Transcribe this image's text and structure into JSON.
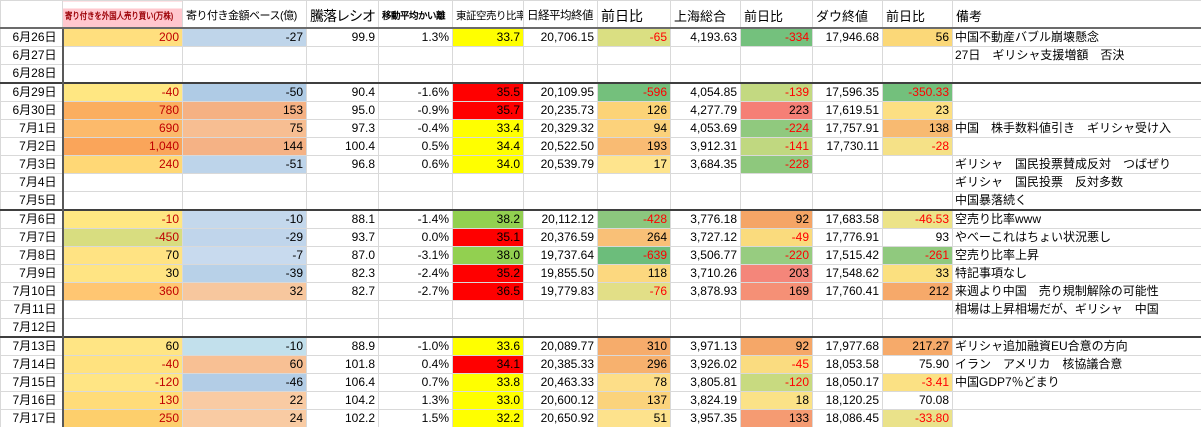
{
  "app": {
    "type": "spreadsheet",
    "description": "株式市況記録シート"
  },
  "columns": [
    {
      "key": "date",
      "label": ""
    },
    {
      "key": "foreign",
      "label": "寄り付きを外国人売り買い(万株)"
    },
    {
      "key": "amount",
      "label": "寄り付き金額ベース(億)"
    },
    {
      "key": "ratio",
      "label": "騰落レシオ"
    },
    {
      "key": "deviation",
      "label": "移動平均かい離"
    },
    {
      "key": "short_ratio",
      "label": "東証空売り比率"
    },
    {
      "key": "nikkei",
      "label": "日経平均終値"
    },
    {
      "key": "nikkei_chg",
      "label": "前日比"
    },
    {
      "key": "shanghai",
      "label": "上海総合"
    },
    {
      "key": "shanghai_chg",
      "label": "前日比"
    },
    {
      "key": "dow",
      "label": "ダウ終値"
    },
    {
      "key": "dow_chg",
      "label": "前日比"
    },
    {
      "key": "note",
      "label": "備考"
    }
  ],
  "colors": {
    "header_pink_bg": "#ffc7ce",
    "header_pink_text": "#9c0006",
    "short_yellow": "#ffff00",
    "short_red": "#ff0000",
    "short_green": "#92d050",
    "negative_text": "#ff0000",
    "foreign_text_red": "#c00000",
    "grid": "#d9d9d9",
    "week_border": "#3f3f3f"
  },
  "rows": [
    {
      "date": "6月26日",
      "week_start": false,
      "cells": {
        "foreign": {
          "v": "200",
          "bg": "#FFDF7E",
          "fg": "#C00000"
        },
        "amount": {
          "v": "-27",
          "bg": "#BFD5EA"
        },
        "ratio": {
          "v": "99.9"
        },
        "deviation": {
          "v": "1.3%"
        },
        "short_ratio": {
          "v": "33.7",
          "bg": "#FFFF00"
        },
        "nikkei": {
          "v": "20,706.15"
        },
        "nikkei_chg": {
          "v": "-65",
          "bg": "#DADF82",
          "fg": "#FF0000"
        },
        "shanghai": {
          "v": "4,193.63"
        },
        "shanghai_chg": {
          "v": "-334",
          "bg": "#74C17D",
          "fg": "#FF0000"
        },
        "dow": {
          "v": "17,946.68"
        },
        "dow_chg": {
          "v": "56",
          "bg": "#FBD878"
        },
        "note": {
          "v": "中国不動産バブル崩壊懸念"
        }
      }
    },
    {
      "date": "6月27日",
      "week_start": false,
      "cells": {
        "note": {
          "v": "27日　ギリシャ支援増額　否決"
        }
      }
    },
    {
      "date": "6月28日",
      "week_start": false,
      "cells": {}
    },
    {
      "date": "6月29日",
      "week_start": true,
      "cells": {
        "foreign": {
          "v": "-40",
          "bg": "#FFE782",
          "fg": "#C00000"
        },
        "amount": {
          "v": "-50",
          "bg": "#AFCBE5"
        },
        "ratio": {
          "v": "90.4"
        },
        "deviation": {
          "v": "-1.6%"
        },
        "short_ratio": {
          "v": "35.5",
          "bg": "#FF0000"
        },
        "nikkei": {
          "v": "20,109.95"
        },
        "nikkei_chg": {
          "v": "-596",
          "bg": "#74C07C",
          "fg": "#FF0000"
        },
        "shanghai": {
          "v": "4,054.85"
        },
        "shanghai_chg": {
          "v": "-139",
          "bg": "#C3D981",
          "fg": "#FF0000"
        },
        "dow": {
          "v": "17,596.35"
        },
        "dow_chg": {
          "v": "-350.33",
          "bg": "#73C07C",
          "fg": "#FF0000"
        }
      }
    },
    {
      "date": "6月30日",
      "week_start": false,
      "cells": {
        "foreign": {
          "v": "780",
          "bg": "#FBAE5F",
          "fg": "#C00000"
        },
        "amount": {
          "v": "153",
          "bg": "#F5B183"
        },
        "ratio": {
          "v": "95.0"
        },
        "deviation": {
          "v": "-0.9%"
        },
        "short_ratio": {
          "v": "35.7",
          "bg": "#FF0000"
        },
        "nikkei": {
          "v": "20,235.73"
        },
        "nikkei_chg": {
          "v": "126",
          "bg": "#FCD377"
        },
        "shanghai": {
          "v": "4,277.79"
        },
        "shanghai_chg": {
          "v": "223",
          "bg": "#F57F76"
        },
        "dow": {
          "v": "17,619.51"
        },
        "dow_chg": {
          "v": "23",
          "bg": "#FCDF83"
        }
      }
    },
    {
      "date": "7月1日",
      "week_start": false,
      "cells": {
        "foreign": {
          "v": "690",
          "bg": "#FCBA6B",
          "fg": "#C00000"
        },
        "amount": {
          "v": "75",
          "bg": "#F7BE92"
        },
        "ratio": {
          "v": "97.3"
        },
        "deviation": {
          "v": "-0.4%"
        },
        "short_ratio": {
          "v": "33.4",
          "bg": "#FFFF00"
        },
        "nikkei": {
          "v": "20,329.32"
        },
        "nikkei_chg": {
          "v": "94",
          "bg": "#FCD27B"
        },
        "shanghai": {
          "v": "4,053.69"
        },
        "shanghai_chg": {
          "v": "-224",
          "bg": "#90C97E",
          "fg": "#FF0000"
        },
        "dow": {
          "v": "17,757.91"
        },
        "dow_chg": {
          "v": "138",
          "bg": "#F8BA71"
        },
        "note": {
          "v": "中国　株手数料値引き　ギリシャ受け入"
        }
      }
    },
    {
      "date": "7月2日",
      "week_start": false,
      "cells": {
        "foreign": {
          "v": "1,040",
          "bg": "#FAA55A",
          "fg": "#C00000"
        },
        "amount": {
          "v": "144",
          "bg": "#F5B285"
        },
        "ratio": {
          "v": "100.4"
        },
        "deviation": {
          "v": "0.5%"
        },
        "short_ratio": {
          "v": "34.4",
          "bg": "#FFFF00"
        },
        "nikkei": {
          "v": "20,522.50"
        },
        "nikkei_chg": {
          "v": "193",
          "bg": "#F9BB73"
        },
        "shanghai": {
          "v": "3,912.31"
        },
        "shanghai_chg": {
          "v": "-141",
          "bg": "#C0D880",
          "fg": "#FF0000"
        },
        "dow": {
          "v": "17,730.11"
        },
        "dow_chg": {
          "v": "-28",
          "bg": "#F5E187",
          "fg": "#FF0000"
        }
      }
    },
    {
      "date": "7月3日",
      "week_start": false,
      "cells": {
        "foreign": {
          "v": "240",
          "bg": "#FFD876",
          "fg": "#C00000"
        },
        "amount": {
          "v": "-51",
          "bg": "#BDD4EA"
        },
        "ratio": {
          "v": "96.8"
        },
        "deviation": {
          "v": "0.6%"
        },
        "short_ratio": {
          "v": "34.0",
          "bg": "#FFFF00"
        },
        "nikkei": {
          "v": "20,539.79"
        },
        "nikkei_chg": {
          "v": "17",
          "bg": "#FEE48D"
        },
        "shanghai": {
          "v": "3,684.35"
        },
        "shanghai_chg": {
          "v": "-228",
          "bg": "#8EC87D",
          "fg": "#FF0000"
        },
        "note": {
          "v": "ギリシャ　国民投票賛成反対　つばぜり"
        }
      }
    },
    {
      "date": "7月4日",
      "week_start": false,
      "cells": {
        "note": {
          "v": "ギリシャ　国民投票　反対多数"
        }
      }
    },
    {
      "date": "7月5日",
      "week_start": false,
      "cells": {
        "note": {
          "v": "中国暴落続く"
        }
      }
    },
    {
      "date": "7月6日",
      "week_start": true,
      "cells": {
        "foreign": {
          "v": "-10",
          "bg": "#FFE782",
          "fg": "#C00000"
        },
        "amount": {
          "v": "-10",
          "bg": "#C4D8EC"
        },
        "ratio": {
          "v": "88.1"
        },
        "deviation": {
          "v": "-1.4%"
        },
        "short_ratio": {
          "v": "38.2",
          "bg": "#92D050"
        },
        "nikkei": {
          "v": "20,112.12"
        },
        "nikkei_chg": {
          "v": "-428",
          "bg": "#8CC77E",
          "fg": "#FF0000"
        },
        "shanghai": {
          "v": "3,776.18"
        },
        "shanghai_chg": {
          "v": "92",
          "bg": "#F5A566"
        },
        "dow": {
          "v": "17,683.58"
        },
        "dow_chg": {
          "v": "-46.53",
          "bg": "#ECE388",
          "fg": "#FF0000"
        },
        "note": {
          "v": "空売り比率www"
        }
      }
    },
    {
      "date": "7月7日",
      "week_start": false,
      "cells": {
        "foreign": {
          "v": "-450",
          "bg": "#D8DD80",
          "fg": "#C00000"
        },
        "amount": {
          "v": "-29",
          "bg": "#C0D5EB"
        },
        "ratio": {
          "v": "93.7"
        },
        "deviation": {
          "v": "0.0%"
        },
        "short_ratio": {
          "v": "35.1",
          "bg": "#FF0000"
        },
        "nikkei": {
          "v": "20,376.59"
        },
        "nikkei_chg": {
          "v": "264",
          "bg": "#F9C077"
        },
        "shanghai": {
          "v": "3,727.12"
        },
        "shanghai_chg": {
          "v": "-49",
          "bg": "#FADB7D",
          "fg": "#FF0000"
        },
        "dow": {
          "v": "17,776.91"
        },
        "dow_chg": {
          "v": "93"
        },
        "note": {
          "v": "やべーこれはちょい状況悪し"
        }
      }
    },
    {
      "date": "7月8日",
      "week_start": false,
      "cells": {
        "foreign": {
          "v": "70",
          "bg": "#FFE383"
        },
        "amount": {
          "v": "-7",
          "bg": "#C8DAEE"
        },
        "ratio": {
          "v": "87.0"
        },
        "deviation": {
          "v": "-3.1%"
        },
        "short_ratio": {
          "v": "38.0",
          "bg": "#92D050"
        },
        "nikkei": {
          "v": "19,737.64"
        },
        "nikkei_chg": {
          "v": "-639",
          "bg": "#6CBD7B",
          "fg": "#FF0000"
        },
        "shanghai": {
          "v": "3,506.77"
        },
        "shanghai_chg": {
          "v": "-220",
          "bg": "#97CC80",
          "fg": "#FF0000"
        },
        "dow": {
          "v": "17,515.42"
        },
        "dow_chg": {
          "v": "-261",
          "bg": "#90C97E",
          "fg": "#FF0000"
        },
        "note": {
          "v": "空売り比率上昇"
        }
      }
    },
    {
      "date": "7月9日",
      "week_start": false,
      "cells": {
        "foreign": {
          "v": "30",
          "bg": "#FFE483"
        },
        "amount": {
          "v": "-39",
          "bg": "#B8D1E8"
        },
        "ratio": {
          "v": "82.3"
        },
        "deviation": {
          "v": "-2.4%"
        },
        "short_ratio": {
          "v": "35.2",
          "bg": "#FF0000"
        },
        "nikkei": {
          "v": "19,855.50"
        },
        "nikkei_chg": {
          "v": "118",
          "bg": "#FCD87F"
        },
        "shanghai": {
          "v": "3,710.26"
        },
        "shanghai_chg": {
          "v": "203",
          "bg": "#F4867A"
        },
        "dow": {
          "v": "17,548.62"
        },
        "dow_chg": {
          "v": "33",
          "bg": "#FBE07F"
        },
        "note": {
          "v": "特記事項なし"
        }
      }
    },
    {
      "date": "7月10日",
      "week_start": false,
      "cells": {
        "foreign": {
          "v": "360",
          "bg": "#FFC672",
          "fg": "#C00000"
        },
        "amount": {
          "v": "32",
          "bg": "#F7C79E"
        },
        "ratio": {
          "v": "82.7"
        },
        "deviation": {
          "v": "-2.7%"
        },
        "short_ratio": {
          "v": "36.5",
          "bg": "#FF0000"
        },
        "nikkei": {
          "v": "19,779.83"
        },
        "nikkei_chg": {
          "v": "-76",
          "bg": "#E2DF87",
          "fg": "#FF0000"
        },
        "shanghai": {
          "v": "3,878.93"
        },
        "shanghai_chg": {
          "v": "169",
          "bg": "#F59076"
        },
        "dow": {
          "v": "17,760.41"
        },
        "dow_chg": {
          "v": "212",
          "bg": "#F6A96A"
        },
        "note": {
          "v": "来週より中国　売り規制解除の可能性"
        }
      }
    },
    {
      "date": "7月11日",
      "week_start": false,
      "cells": {
        "note": {
          "v": "相場は上昇相場だが、ギリシャ　中国"
        }
      }
    },
    {
      "date": "7月12日",
      "week_start": false,
      "cells": {}
    },
    {
      "date": "7月13日",
      "week_start": true,
      "cells": {
        "foreign": {
          "v": "60",
          "bg": "#FFE584"
        },
        "amount": {
          "v": "-10",
          "bg": "#C2E0EC"
        },
        "ratio": {
          "v": "88.9"
        },
        "deviation": {
          "v": "-1.0%"
        },
        "short_ratio": {
          "v": "33.6",
          "bg": "#FFFF00"
        },
        "nikkei": {
          "v": "20,089.77"
        },
        "nikkei_chg": {
          "v": "310",
          "bg": "#F6AC6B"
        },
        "shanghai": {
          "v": "3,971.13"
        },
        "shanghai_chg": {
          "v": "92",
          "bg": "#F5A768"
        },
        "dow": {
          "v": "17,977.68"
        },
        "dow_chg": {
          "v": "217.27",
          "bg": "#F6AA6A"
        },
        "note": {
          "v": "ギリシャ追加融資EU合意の方向"
        }
      }
    },
    {
      "date": "7月14日",
      "week_start": false,
      "cells": {
        "foreign": {
          "v": "-40",
          "bg": "#FFE27F",
          "fg": "#C00000"
        },
        "amount": {
          "v": "60",
          "bg": "#F8C094"
        },
        "ratio": {
          "v": "101.8"
        },
        "deviation": {
          "v": "0.4%"
        },
        "short_ratio": {
          "v": "34.1",
          "bg": "#FF0000"
        },
        "nikkei": {
          "v": "20,385.33"
        },
        "nikkei_chg": {
          "v": "296",
          "bg": "#F7B16E"
        },
        "shanghai": {
          "v": "3,926.02"
        },
        "shanghai_chg": {
          "v": "-45",
          "bg": "#FADC80",
          "fg": "#FF0000"
        },
        "dow": {
          "v": "18,053.58"
        },
        "dow_chg": {
          "v": "75.90"
        },
        "note": {
          "v": "イラン　アメリカ　核協議合意"
        }
      }
    },
    {
      "date": "7月15日",
      "week_start": false,
      "cells": {
        "foreign": {
          "v": "-120",
          "bg": "#FFE584",
          "fg": "#C00000"
        },
        "amount": {
          "v": "-46",
          "bg": "#B3CDE6"
        },
        "ratio": {
          "v": "106.4"
        },
        "deviation": {
          "v": "0.7%"
        },
        "short_ratio": {
          "v": "33.8",
          "bg": "#FFFF00"
        },
        "nikkei": {
          "v": "20,463.33"
        },
        "nikkei_chg": {
          "v": "78",
          "bg": "#FDDE88"
        },
        "shanghai": {
          "v": "3,805.81"
        },
        "shanghai_chg": {
          "v": "-120",
          "bg": "#C8DA80",
          "fg": "#FF0000"
        },
        "dow": {
          "v": "18,050.17"
        },
        "dow_chg": {
          "v": "-3.41",
          "bg": "#FBE184",
          "fg": "#FF0000"
        },
        "note": {
          "v": "中国GDP7％どまり"
        }
      }
    },
    {
      "date": "7月16日",
      "week_start": false,
      "cells": {
        "foreign": {
          "v": "130",
          "bg": "#FFDC79",
          "fg": "#C00000"
        },
        "amount": {
          "v": "22",
          "bg": "#F9CBA3"
        },
        "ratio": {
          "v": "104.2"
        },
        "deviation": {
          "v": "1.3%"
        },
        "short_ratio": {
          "v": "33.0",
          "bg": "#FFFF00"
        },
        "nikkei": {
          "v": "20,600.12"
        },
        "nikkei_chg": {
          "v": "137",
          "bg": "#FBD37C"
        },
        "shanghai": {
          "v": "3,824.19"
        },
        "shanghai_chg": {
          "v": "18",
          "bg": "#FBE287"
        },
        "dow": {
          "v": "18,120.25"
        },
        "dow_chg": {
          "v": "70.08"
        }
      }
    },
    {
      "date": "7月17日",
      "week_start": false,
      "cells": {
        "foreign": {
          "v": "250",
          "bg": "#FDCF6C",
          "fg": "#C00000"
        },
        "amount": {
          "v": "24",
          "bg": "#F9CBA3"
        },
        "ratio": {
          "v": "102.2"
        },
        "deviation": {
          "v": "1.5%"
        },
        "short_ratio": {
          "v": "32.2",
          "bg": "#FFFF00"
        },
        "nikkei": {
          "v": "20,650.92"
        },
        "nikkei_chg": {
          "v": "51",
          "bg": "#FDE28C"
        },
        "shanghai": {
          "v": "3,957.35"
        },
        "shanghai_chg": {
          "v": "133",
          "bg": "#F59B72"
        },
        "dow": {
          "v": "18,086.45"
        },
        "dow_chg": {
          "v": "-33.80",
          "bg": "#EAE28A",
          "fg": "#FF0000"
        }
      }
    },
    {
      "date": "",
      "week_start": false,
      "cells": {}
    }
  ]
}
